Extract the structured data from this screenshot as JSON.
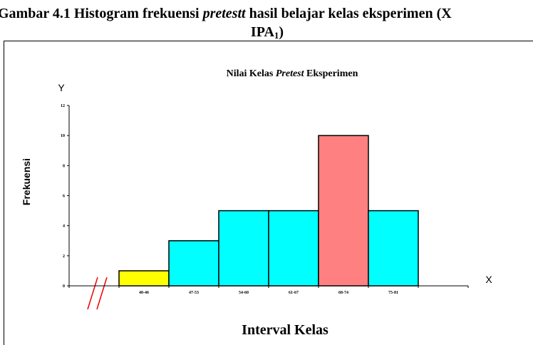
{
  "caption": {
    "line1": [
      "Gambar 4.1 Histogram frekuensi ",
      "pretestt",
      " hasil belajar kelas eksperimen  (X"
    ],
    "line2": [
      "IPA",
      "1",
      ")"
    ]
  },
  "chart_data": {
    "type": "bar",
    "title": [
      "Nilai Kelas ",
      "Pretest",
      " Eksperimen"
    ],
    "y_symbol": "Y",
    "x_symbol": "X",
    "ylabel": "Frekuensi",
    "xlabel": "Interval Kelas",
    "categories": [
      "40-46",
      "47-53",
      "54-60",
      "61-67",
      "68-74",
      "75-81"
    ],
    "values": [
      1,
      3,
      5,
      5,
      10,
      5
    ],
    "colors": [
      "#ffff00",
      "#00ffff",
      "#00ffff",
      "#00ffff",
      "#ff8080",
      "#00ffff"
    ],
    "ylim": [
      0,
      12
    ],
    "yticks": [
      0,
      2,
      4,
      6,
      8,
      10,
      12
    ]
  }
}
